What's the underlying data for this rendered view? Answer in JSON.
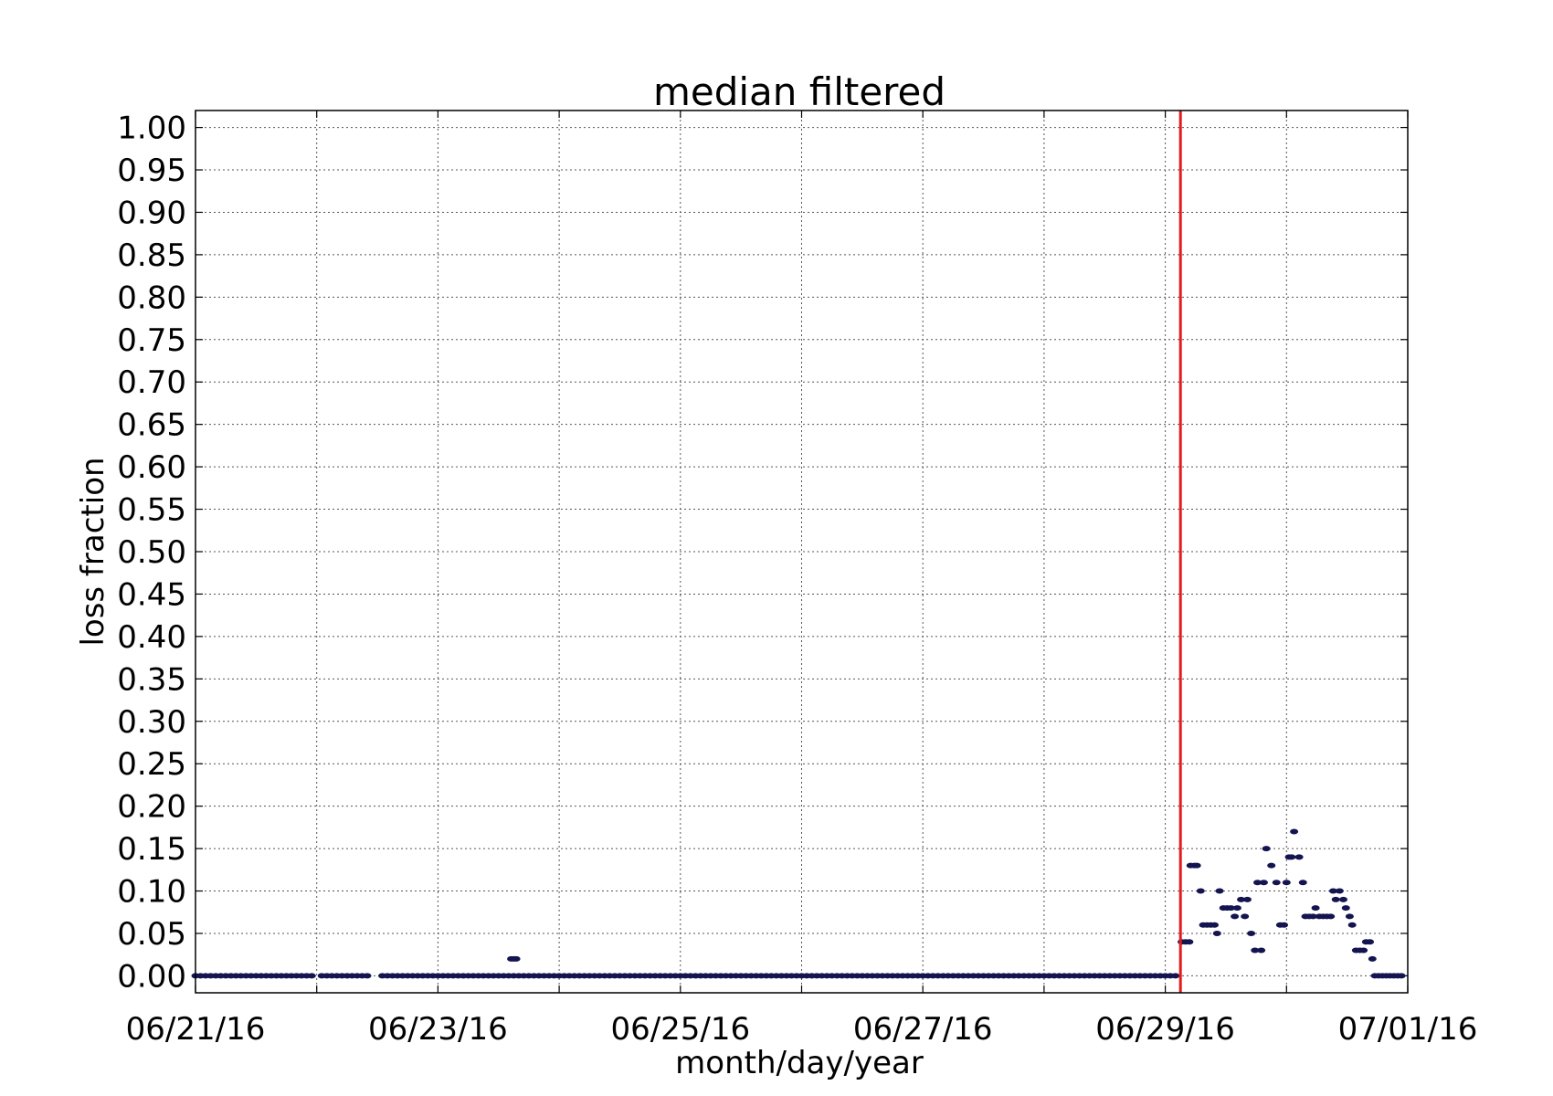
{
  "chart_data": {
    "type": "scatter",
    "title": "median filtered",
    "xlabel": "month/day/year",
    "ylabel": "loss fraction",
    "x_tick_labels": [
      "06/21/16",
      "06/23/16",
      "06/25/16",
      "06/27/16",
      "06/29/16",
      "07/01/16"
    ],
    "x_ticks": [
      "2016-06-21",
      "2016-06-22",
      "2016-06-23",
      "2016-06-24",
      "2016-06-25",
      "2016-06-26",
      "2016-06-27",
      "2016-06-28",
      "2016-06-29",
      "2016-06-30",
      "2016-07-01"
    ],
    "y_tick_labels": [
      "0.00",
      "0.05",
      "0.10",
      "0.15",
      "0.20",
      "0.25",
      "0.30",
      "0.35",
      "0.40",
      "0.45",
      "0.50",
      "0.55",
      "0.60",
      "0.65",
      "0.70",
      "0.75",
      "0.80",
      "0.85",
      "0.90",
      "0.95",
      "1.00"
    ],
    "xlim": [
      "2016-06-21",
      "2016-07-01"
    ],
    "ylim": [
      -0.02,
      1.02
    ],
    "grid": true,
    "marker_color": "#141450",
    "vline": {
      "x": "2016-06-29 03:00",
      "color": "#e41a1c"
    },
    "series": [
      {
        "points": [
          [
            "2016-06-21 00:00",
            0
          ],
          [
            "2016-06-21 01:00",
            0
          ],
          [
            "2016-06-21 02:00",
            0
          ],
          [
            "2016-06-21 03:00",
            0
          ],
          [
            "2016-06-21 04:00",
            0
          ],
          [
            "2016-06-21 05:00",
            0
          ],
          [
            "2016-06-21 06:00",
            0
          ],
          [
            "2016-06-21 07:00",
            0
          ],
          [
            "2016-06-21 08:00",
            0
          ],
          [
            "2016-06-21 09:00",
            0
          ],
          [
            "2016-06-21 10:00",
            0
          ],
          [
            "2016-06-21 11:00",
            0
          ],
          [
            "2016-06-21 12:00",
            0
          ],
          [
            "2016-06-21 13:00",
            0
          ],
          [
            "2016-06-21 14:00",
            0
          ],
          [
            "2016-06-21 15:00",
            0
          ],
          [
            "2016-06-21 16:00",
            0
          ],
          [
            "2016-06-21 17:00",
            0
          ],
          [
            "2016-06-21 18:00",
            0
          ],
          [
            "2016-06-21 19:00",
            0
          ],
          [
            "2016-06-21 20:00",
            0
          ],
          [
            "2016-06-21 21:00",
            0
          ],
          [
            "2016-06-21 22:00",
            0
          ],
          [
            "2016-06-21 23:00",
            0
          ],
          [
            "2016-06-22 01:00",
            0
          ],
          [
            "2016-06-22 02:00",
            0
          ],
          [
            "2016-06-22 03:00",
            0
          ],
          [
            "2016-06-22 04:00",
            0
          ],
          [
            "2016-06-22 05:00",
            0
          ],
          [
            "2016-06-22 06:00",
            0
          ],
          [
            "2016-06-22 07:00",
            0
          ],
          [
            "2016-06-22 08:00",
            0
          ],
          [
            "2016-06-22 09:00",
            0
          ],
          [
            "2016-06-22 10:00",
            0
          ],
          [
            "2016-06-22 13:00",
            0
          ],
          [
            "2016-06-22 14:00",
            0
          ],
          [
            "2016-06-22 15:00",
            0
          ],
          [
            "2016-06-22 16:00",
            0
          ],
          [
            "2016-06-22 17:00",
            0
          ],
          [
            "2016-06-22 18:00",
            0
          ],
          [
            "2016-06-22 19:00",
            0
          ],
          [
            "2016-06-22 20:00",
            0
          ],
          [
            "2016-06-22 21:00",
            0
          ],
          [
            "2016-06-22 22:00",
            0
          ],
          [
            "2016-06-22 23:00",
            0
          ],
          [
            "2016-06-23 00:00",
            0
          ],
          [
            "2016-06-23 01:00",
            0
          ],
          [
            "2016-06-23 02:00",
            0
          ],
          [
            "2016-06-23 03:00",
            0
          ],
          [
            "2016-06-23 04:00",
            0
          ],
          [
            "2016-06-23 05:00",
            0
          ],
          [
            "2016-06-23 06:00",
            0
          ],
          [
            "2016-06-23 07:00",
            0
          ],
          [
            "2016-06-23 08:00",
            0
          ],
          [
            "2016-06-23 09:00",
            0
          ],
          [
            "2016-06-23 10:00",
            0
          ],
          [
            "2016-06-23 11:00",
            0
          ],
          [
            "2016-06-23 12:00",
            0
          ],
          [
            "2016-06-23 13:00",
            0
          ],
          [
            "2016-06-23 14:00",
            0
          ],
          [
            "2016-06-23 15:00",
            0
          ],
          [
            "2016-06-23 16:00",
            0
          ],
          [
            "2016-06-23 17:00",
            0
          ],
          [
            "2016-06-23 18:00",
            0
          ],
          [
            "2016-06-23 19:00",
            0
          ],
          [
            "2016-06-23 20:00",
            0
          ],
          [
            "2016-06-23 21:00",
            0
          ],
          [
            "2016-06-23 22:00",
            0
          ],
          [
            "2016-06-23 23:00",
            0
          ],
          [
            "2016-06-24 00:00",
            0
          ],
          [
            "2016-06-24 01:00",
            0
          ],
          [
            "2016-06-24 02:00",
            0
          ],
          [
            "2016-06-24 03:00",
            0
          ],
          [
            "2016-06-24 04:00",
            0
          ],
          [
            "2016-06-24 05:00",
            0
          ],
          [
            "2016-06-24 06:00",
            0
          ],
          [
            "2016-06-24 07:00",
            0
          ],
          [
            "2016-06-24 08:00",
            0
          ],
          [
            "2016-06-24 09:00",
            0
          ],
          [
            "2016-06-24 10:00",
            0
          ],
          [
            "2016-06-24 11:00",
            0
          ],
          [
            "2016-06-24 12:00",
            0
          ],
          [
            "2016-06-24 13:00",
            0
          ],
          [
            "2016-06-24 14:00",
            0
          ],
          [
            "2016-06-24 15:00",
            0
          ],
          [
            "2016-06-24 16:00",
            0
          ],
          [
            "2016-06-24 17:00",
            0
          ],
          [
            "2016-06-24 18:00",
            0
          ],
          [
            "2016-06-24 19:00",
            0
          ],
          [
            "2016-06-24 20:00",
            0
          ],
          [
            "2016-06-24 21:00",
            0
          ],
          [
            "2016-06-24 22:00",
            0
          ],
          [
            "2016-06-24 23:00",
            0
          ],
          [
            "2016-06-25 00:00",
            0
          ],
          [
            "2016-06-25 01:00",
            0
          ],
          [
            "2016-06-25 02:00",
            0
          ],
          [
            "2016-06-25 03:00",
            0
          ],
          [
            "2016-06-25 04:00",
            0
          ],
          [
            "2016-06-25 05:00",
            0
          ],
          [
            "2016-06-25 06:00",
            0
          ],
          [
            "2016-06-25 07:00",
            0
          ],
          [
            "2016-06-25 08:00",
            0
          ],
          [
            "2016-06-25 09:00",
            0
          ],
          [
            "2016-06-25 10:00",
            0
          ],
          [
            "2016-06-25 11:00",
            0
          ],
          [
            "2016-06-25 12:00",
            0
          ],
          [
            "2016-06-25 13:00",
            0
          ],
          [
            "2016-06-25 14:00",
            0
          ],
          [
            "2016-06-25 15:00",
            0
          ],
          [
            "2016-06-25 16:00",
            0
          ],
          [
            "2016-06-25 17:00",
            0
          ],
          [
            "2016-06-25 18:00",
            0
          ],
          [
            "2016-06-25 19:00",
            0
          ],
          [
            "2016-06-25 20:00",
            0
          ],
          [
            "2016-06-25 21:00",
            0
          ],
          [
            "2016-06-25 22:00",
            0
          ],
          [
            "2016-06-25 23:00",
            0
          ],
          [
            "2016-06-26 00:00",
            0
          ],
          [
            "2016-06-26 01:00",
            0
          ],
          [
            "2016-06-26 02:00",
            0
          ],
          [
            "2016-06-26 03:00",
            0
          ],
          [
            "2016-06-26 04:00",
            0
          ],
          [
            "2016-06-26 05:00",
            0
          ],
          [
            "2016-06-26 06:00",
            0
          ],
          [
            "2016-06-26 07:00",
            0
          ],
          [
            "2016-06-26 08:00",
            0
          ],
          [
            "2016-06-26 09:00",
            0
          ],
          [
            "2016-06-26 10:00",
            0
          ],
          [
            "2016-06-26 11:00",
            0
          ],
          [
            "2016-06-26 12:00",
            0
          ],
          [
            "2016-06-26 13:00",
            0
          ],
          [
            "2016-06-26 14:00",
            0
          ],
          [
            "2016-06-26 15:00",
            0
          ],
          [
            "2016-06-26 16:00",
            0
          ],
          [
            "2016-06-26 17:00",
            0
          ],
          [
            "2016-06-26 18:00",
            0
          ],
          [
            "2016-06-26 19:00",
            0
          ],
          [
            "2016-06-26 20:00",
            0
          ],
          [
            "2016-06-26 21:00",
            0
          ],
          [
            "2016-06-26 22:00",
            0
          ],
          [
            "2016-06-26 23:00",
            0
          ],
          [
            "2016-06-27 00:00",
            0
          ],
          [
            "2016-06-27 01:00",
            0
          ],
          [
            "2016-06-27 02:00",
            0
          ],
          [
            "2016-06-27 03:00",
            0
          ],
          [
            "2016-06-27 04:00",
            0
          ],
          [
            "2016-06-27 05:00",
            0
          ],
          [
            "2016-06-27 06:00",
            0
          ],
          [
            "2016-06-27 07:00",
            0
          ],
          [
            "2016-06-27 08:00",
            0
          ],
          [
            "2016-06-27 09:00",
            0
          ],
          [
            "2016-06-27 10:00",
            0
          ],
          [
            "2016-06-27 11:00",
            0
          ],
          [
            "2016-06-27 12:00",
            0
          ],
          [
            "2016-06-27 13:00",
            0
          ],
          [
            "2016-06-27 14:00",
            0
          ],
          [
            "2016-06-27 15:00",
            0
          ],
          [
            "2016-06-27 16:00",
            0
          ],
          [
            "2016-06-27 17:00",
            0
          ],
          [
            "2016-06-27 18:00",
            0
          ],
          [
            "2016-06-27 19:00",
            0
          ],
          [
            "2016-06-27 20:00",
            0
          ],
          [
            "2016-06-27 21:00",
            0
          ],
          [
            "2016-06-27 22:00",
            0
          ],
          [
            "2016-06-27 23:00",
            0
          ],
          [
            "2016-06-28 00:00",
            0
          ],
          [
            "2016-06-28 01:00",
            0
          ],
          [
            "2016-06-28 02:00",
            0
          ],
          [
            "2016-06-28 03:00",
            0
          ],
          [
            "2016-06-28 04:00",
            0
          ],
          [
            "2016-06-28 05:00",
            0
          ],
          [
            "2016-06-28 06:00",
            0
          ],
          [
            "2016-06-28 07:00",
            0
          ],
          [
            "2016-06-28 08:00",
            0
          ],
          [
            "2016-06-28 09:00",
            0
          ],
          [
            "2016-06-28 10:00",
            0
          ],
          [
            "2016-06-28 11:00",
            0
          ],
          [
            "2016-06-28 12:00",
            0
          ],
          [
            "2016-06-28 13:00",
            0
          ],
          [
            "2016-06-28 14:00",
            0
          ],
          [
            "2016-06-28 15:00",
            0
          ],
          [
            "2016-06-28 16:00",
            0
          ],
          [
            "2016-06-28 17:00",
            0
          ],
          [
            "2016-06-28 18:00",
            0
          ],
          [
            "2016-06-28 19:00",
            0
          ],
          [
            "2016-06-28 20:00",
            0
          ],
          [
            "2016-06-28 21:00",
            0
          ],
          [
            "2016-06-28 22:00",
            0
          ],
          [
            "2016-06-28 23:00",
            0
          ],
          [
            "2016-06-29 00:00",
            0
          ],
          [
            "2016-06-29 01:00",
            0
          ],
          [
            "2016-06-29 02:00",
            0
          ],
          [
            "2016-06-23 14:30",
            0.02
          ],
          [
            "2016-06-23 15:00",
            0.02
          ],
          [
            "2016-06-23 15:30",
            0.02
          ],
          [
            "2016-06-29 03:15",
            0.04
          ],
          [
            "2016-06-29 04:00",
            0.04
          ],
          [
            "2016-06-29 04:45",
            0.04
          ],
          [
            "2016-06-29 05:00",
            0.13
          ],
          [
            "2016-06-29 05:45",
            0.13
          ],
          [
            "2016-06-29 06:15",
            0.13
          ],
          [
            "2016-06-29 07:00",
            0.1
          ],
          [
            "2016-06-29 07:30",
            0.06
          ],
          [
            "2016-06-29 08:15",
            0.06
          ],
          [
            "2016-06-29 09:00",
            0.06
          ],
          [
            "2016-06-29 09:45",
            0.06
          ],
          [
            "2016-06-29 10:15",
            0.05
          ],
          [
            "2016-06-29 10:45",
            0.1
          ],
          [
            "2016-06-29 11:30",
            0.08
          ],
          [
            "2016-06-29 12:15",
            0.08
          ],
          [
            "2016-06-29 13:00",
            0.08
          ],
          [
            "2016-06-29 13:45",
            0.07
          ],
          [
            "2016-06-29 14:15",
            0.08
          ],
          [
            "2016-06-29 15:00",
            0.09
          ],
          [
            "2016-06-29 15:45",
            0.07
          ],
          [
            "2016-06-29 16:15",
            0.09
          ],
          [
            "2016-06-29 17:00",
            0.05
          ],
          [
            "2016-06-29 17:45",
            0.03
          ],
          [
            "2016-06-29 18:15",
            0.11
          ],
          [
            "2016-06-29 19:00",
            0.03
          ],
          [
            "2016-06-29 19:30",
            0.11
          ],
          [
            "2016-06-29 20:00",
            0.15
          ],
          [
            "2016-06-29 21:00",
            0.13
          ],
          [
            "2016-06-29 22:00",
            0.11
          ],
          [
            "2016-06-29 22:45",
            0.06
          ],
          [
            "2016-06-29 23:30",
            0.06
          ],
          [
            "2016-06-30 00:00",
            0.11
          ],
          [
            "2016-06-30 00:30",
            0.14
          ],
          [
            "2016-06-30 01:00",
            0.14
          ],
          [
            "2016-06-30 01:30",
            0.17
          ],
          [
            "2016-06-30 02:30",
            0.14
          ],
          [
            "2016-06-30 03:15",
            0.11
          ],
          [
            "2016-06-30 03:45",
            0.07
          ],
          [
            "2016-06-30 04:30",
            0.07
          ],
          [
            "2016-06-30 05:15",
            0.07
          ],
          [
            "2016-06-30 05:45",
            0.08
          ],
          [
            "2016-06-30 06:30",
            0.07
          ],
          [
            "2016-06-30 07:15",
            0.07
          ],
          [
            "2016-06-30 08:00",
            0.07
          ],
          [
            "2016-06-30 08:45",
            0.07
          ],
          [
            "2016-06-30 09:15",
            0.1
          ],
          [
            "2016-06-30 09:45",
            0.09
          ],
          [
            "2016-06-30 10:30",
            0.1
          ],
          [
            "2016-06-30 11:15",
            0.09
          ],
          [
            "2016-06-30 11:45",
            0.08
          ],
          [
            "2016-06-30 12:30",
            0.07
          ],
          [
            "2016-06-30 13:00",
            0.06
          ],
          [
            "2016-06-30 13:45",
            0.03
          ],
          [
            "2016-06-30 14:30",
            0.03
          ],
          [
            "2016-06-30 15:15",
            0.03
          ],
          [
            "2016-06-30 15:45",
            0.04
          ],
          [
            "2016-06-30 16:30",
            0.04
          ],
          [
            "2016-06-30 17:00",
            0.02
          ],
          [
            "2016-06-30 17:30",
            0
          ],
          [
            "2016-06-30 18:15",
            0
          ],
          [
            "2016-06-30 19:00",
            0
          ],
          [
            "2016-06-30 19:45",
            0
          ],
          [
            "2016-06-30 20:30",
            0
          ],
          [
            "2016-06-30 21:15",
            0
          ],
          [
            "2016-06-30 22:00",
            0
          ],
          [
            "2016-06-30 22:45",
            0
          ]
        ]
      }
    ]
  }
}
